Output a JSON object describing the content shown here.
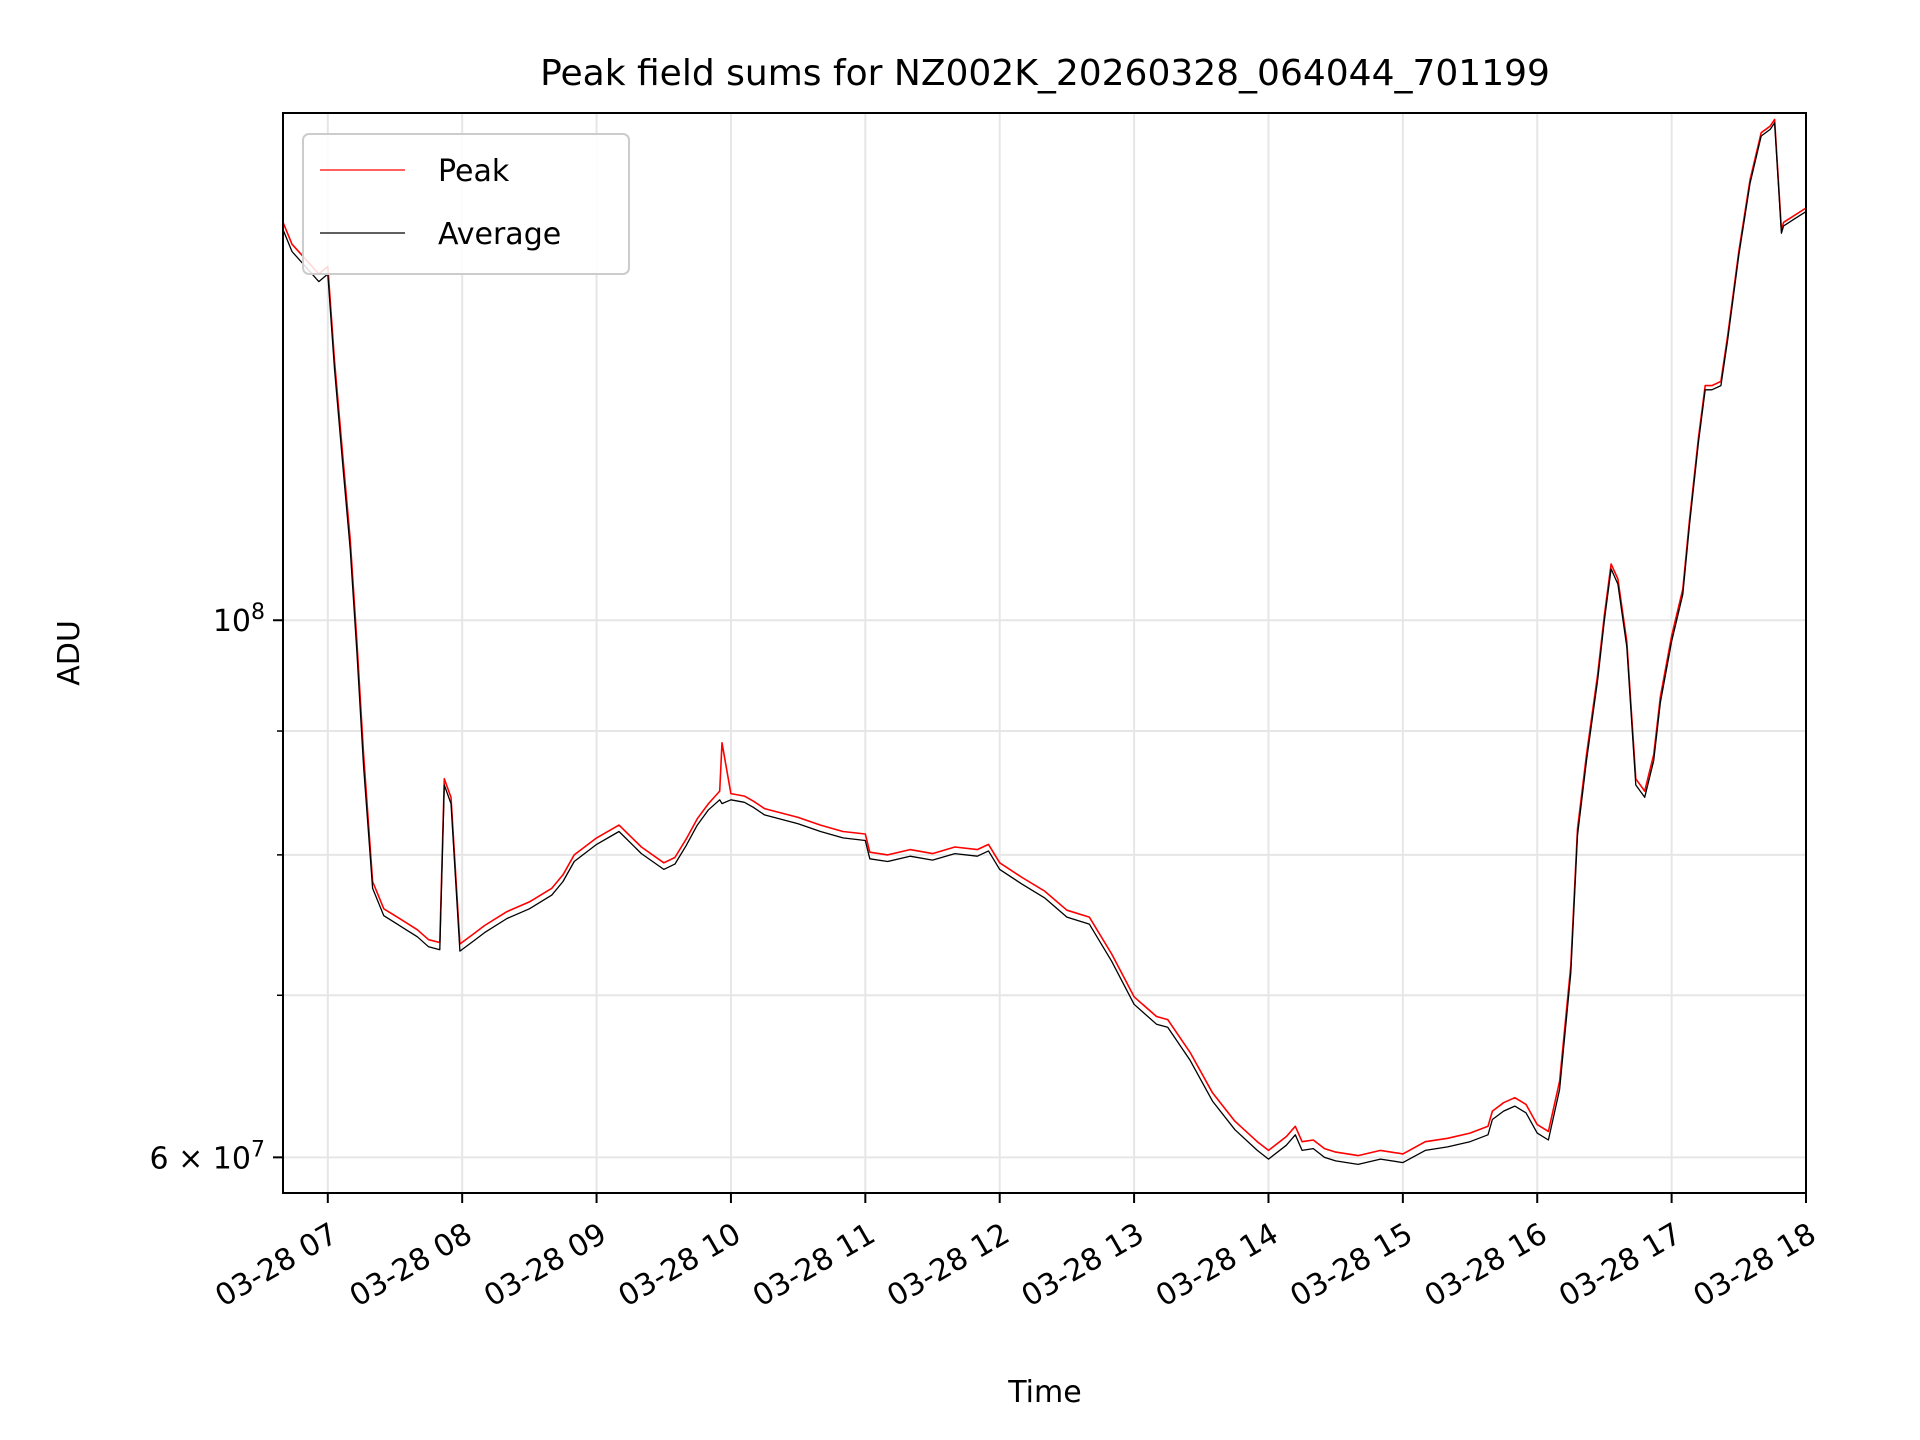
{
  "chart_data": {
    "type": "line",
    "title": "Peak field sums for NZ002K_20260328_064044_701199",
    "xlabel": "Time",
    "ylabel": "ADU",
    "y_scale": "log",
    "grid": true,
    "legend_position": "top-left",
    "xlim": [
      "2026-03-28 06:40",
      "2026-03-28 18:00"
    ],
    "ylim": [
      58000000,
      162000000
    ],
    "x_ticks": [
      "2026-03-28 07:00",
      "2026-03-28 08:00",
      "2026-03-28 09:00",
      "2026-03-28 10:00",
      "2026-03-28 11:00",
      "2026-03-28 12:00",
      "2026-03-28 13:00",
      "2026-03-28 14:00",
      "2026-03-28 15:00",
      "2026-03-28 16:00",
      "2026-03-28 17:00",
      "2026-03-28 18:00"
    ],
    "x_tick_labels": [
      "03-28 07",
      "03-28 08",
      "03-28 09",
      "03-28 10",
      "03-28 11",
      "03-28 12",
      "03-28 13",
      "03-28 14",
      "03-28 15",
      "03-28 16",
      "03-28 17",
      "03-28 18"
    ],
    "y_major_ticks": [
      {
        "value": 100000000,
        "label_base": "10",
        "label_exp": "8"
      },
      {
        "value": 60000000,
        "label_base": "6 × 10",
        "label_exp": "7"
      }
    ],
    "y_minor_ticks": [
      70000000,
      80000000,
      90000000
    ],
    "series": [
      {
        "name": "Peak",
        "color": "#ff0000",
        "x": [
          "2026-03-28 06:40",
          "2026-03-28 06:44",
          "2026-03-28 06:50",
          "2026-03-28 06:56",
          "2026-03-28 07:00",
          "2026-03-28 07:03",
          "2026-03-28 07:07",
          "2026-03-28 07:10",
          "2026-03-28 07:13",
          "2026-03-28 07:16",
          "2026-03-28 07:20",
          "2026-03-28 07:25",
          "2026-03-28 07:30",
          "2026-03-28 07:35",
          "2026-03-28 07:40",
          "2026-03-28 07:45",
          "2026-03-28 07:50",
          "2026-03-28 07:52",
          "2026-03-28 07:53",
          "2026-03-28 07:55",
          "2026-03-28 07:59",
          "2026-03-28 08:05",
          "2026-03-28 08:10",
          "2026-03-28 08:20",
          "2026-03-28 08:30",
          "2026-03-28 08:40",
          "2026-03-28 08:45",
          "2026-03-28 08:50",
          "2026-03-28 09:00",
          "2026-03-28 09:10",
          "2026-03-28 09:20",
          "2026-03-28 09:30",
          "2026-03-28 09:35",
          "2026-03-28 09:40",
          "2026-03-28 09:45",
          "2026-03-28 09:50",
          "2026-03-28 09:55",
          "2026-03-28 09:56",
          "2026-03-28 10:00",
          "2026-03-28 10:06",
          "2026-03-28 10:10",
          "2026-03-28 10:15",
          "2026-03-28 10:30",
          "2026-03-28 10:40",
          "2026-03-28 10:50",
          "2026-03-28 11:00",
          "2026-03-28 11:02",
          "2026-03-28 11:10",
          "2026-03-28 11:20",
          "2026-03-28 11:30",
          "2026-03-28 11:40",
          "2026-03-28 11:50",
          "2026-03-28 11:55",
          "2026-03-28 12:00",
          "2026-03-28 12:10",
          "2026-03-28 12:20",
          "2026-03-28 12:30",
          "2026-03-28 12:40",
          "2026-03-28 12:50",
          "2026-03-28 13:00",
          "2026-03-28 13:10",
          "2026-03-28 13:15",
          "2026-03-28 13:25",
          "2026-03-28 13:35",
          "2026-03-28 13:45",
          "2026-03-28 13:55",
          "2026-03-28 14:00",
          "2026-03-28 14:08",
          "2026-03-28 14:12",
          "2026-03-28 14:15",
          "2026-03-28 14:20",
          "2026-03-28 14:25",
          "2026-03-28 14:30",
          "2026-03-28 14:40",
          "2026-03-28 14:50",
          "2026-03-28 15:00",
          "2026-03-28 15:10",
          "2026-03-28 15:20",
          "2026-03-28 15:30",
          "2026-03-28 15:38",
          "2026-03-28 15:40",
          "2026-03-28 15:45",
          "2026-03-28 15:50",
          "2026-03-28 15:55",
          "2026-03-28 16:00",
          "2026-03-28 16:05",
          "2026-03-28 16:10",
          "2026-03-28 16:15",
          "2026-03-28 16:18",
          "2026-03-28 16:22",
          "2026-03-28 16:27",
          "2026-03-28 16:30",
          "2026-03-28 16:33",
          "2026-03-28 16:36",
          "2026-03-28 16:40",
          "2026-03-28 16:44",
          "2026-03-28 16:48",
          "2026-03-28 16:52",
          "2026-03-28 16:55",
          "2026-03-28 17:00",
          "2026-03-28 17:05",
          "2026-03-28 17:08",
          "2026-03-28 17:12",
          "2026-03-28 17:15",
          "2026-03-28 17:18",
          "2026-03-28 17:22",
          "2026-03-28 17:25",
          "2026-03-28 17:30",
          "2026-03-28 17:35",
          "2026-03-28 17:40",
          "2026-03-28 17:44",
          "2026-03-28 17:46",
          "2026-03-28 17:49",
          "2026-03-28 17:50",
          "2026-03-28 17:55",
          "2026-03-28 18:00"
        ],
        "values": [
          146000000,
          143000000,
          141000000,
          139000000,
          140000000,
          128000000,
          116000000,
          108000000,
          98000000,
          88000000,
          78000000,
          76000000,
          75500000,
          75000000,
          74500000,
          73800000,
          73600000,
          86000000,
          85500000,
          84500000,
          73500000,
          74200000,
          74800000,
          75800000,
          76500000,
          77500000,
          78500000,
          80000000,
          81300000,
          82300000,
          80600000,
          79400000,
          79800000,
          81200000,
          82800000,
          84000000,
          85000000,
          89000000,
          84800000,
          84600000,
          84200000,
          83600000,
          82900000,
          82300000,
          81800000,
          81600000,
          80200000,
          80000000,
          80400000,
          80100000,
          80600000,
          80400000,
          80800000,
          79400000,
          78300000,
          77300000,
          75900000,
          75400000,
          72800000,
          69900000,
          68600000,
          68400000,
          66300000,
          63800000,
          62100000,
          60900000,
          60400000,
          61200000,
          61800000,
          60900000,
          61000000,
          60500000,
          60300000,
          60100000,
          60400000,
          60200000,
          60900000,
          61100000,
          61400000,
          61800000,
          62700000,
          63200000,
          63500000,
          63100000,
          61900000,
          61500000,
          64500000,
          72000000,
          82000000,
          88000000,
          95000000,
          100500000,
          105500000,
          104000000,
          98000000,
          86000000,
          85000000,
          88000000,
          93000000,
          98500000,
          103000000,
          110000000,
          119000000,
          125000000,
          125000000,
          125500000,
          131000000,
          142000000,
          152000000,
          159000000,
          160000000,
          161000000,
          145000000,
          146000000,
          147000000,
          148000000
        ]
      },
      {
        "name": "Average",
        "color": "#000000",
        "x": [
          "2026-03-28 06:40",
          "2026-03-28 06:44",
          "2026-03-28 06:50",
          "2026-03-28 06:56",
          "2026-03-28 07:00",
          "2026-03-28 07:03",
          "2026-03-28 07:07",
          "2026-03-28 07:10",
          "2026-03-28 07:13",
          "2026-03-28 07:16",
          "2026-03-28 07:20",
          "2026-03-28 07:25",
          "2026-03-28 07:30",
          "2026-03-28 07:35",
          "2026-03-28 07:40",
          "2026-03-28 07:45",
          "2026-03-28 07:50",
          "2026-03-28 07:52",
          "2026-03-28 07:53",
          "2026-03-28 07:55",
          "2026-03-28 07:59",
          "2026-03-28 08:05",
          "2026-03-28 08:10",
          "2026-03-28 08:20",
          "2026-03-28 08:30",
          "2026-03-28 08:40",
          "2026-03-28 08:45",
          "2026-03-28 08:50",
          "2026-03-28 09:00",
          "2026-03-28 09:10",
          "2026-03-28 09:20",
          "2026-03-28 09:30",
          "2026-03-28 09:35",
          "2026-03-28 09:40",
          "2026-03-28 09:45",
          "2026-03-28 09:50",
          "2026-03-28 09:55",
          "2026-03-28 09:56",
          "2026-03-28 10:00",
          "2026-03-28 10:06",
          "2026-03-28 10:10",
          "2026-03-28 10:15",
          "2026-03-28 10:30",
          "2026-03-28 10:40",
          "2026-03-28 10:50",
          "2026-03-28 11:00",
          "2026-03-28 11:02",
          "2026-03-28 11:10",
          "2026-03-28 11:20",
          "2026-03-28 11:30",
          "2026-03-28 11:40",
          "2026-03-28 11:50",
          "2026-03-28 11:55",
          "2026-03-28 12:00",
          "2026-03-28 12:10",
          "2026-03-28 12:20",
          "2026-03-28 12:30",
          "2026-03-28 12:40",
          "2026-03-28 12:50",
          "2026-03-28 13:00",
          "2026-03-28 13:10",
          "2026-03-28 13:15",
          "2026-03-28 13:25",
          "2026-03-28 13:35",
          "2026-03-28 13:45",
          "2026-03-28 13:55",
          "2026-03-28 14:00",
          "2026-03-28 14:08",
          "2026-03-28 14:12",
          "2026-03-28 14:15",
          "2026-03-28 14:20",
          "2026-03-28 14:25",
          "2026-03-28 14:30",
          "2026-03-28 14:40",
          "2026-03-28 14:50",
          "2026-03-28 15:00",
          "2026-03-28 15:10",
          "2026-03-28 15:20",
          "2026-03-28 15:30",
          "2026-03-28 15:38",
          "2026-03-28 15:40",
          "2026-03-28 15:45",
          "2026-03-28 15:50",
          "2026-03-28 15:55",
          "2026-03-28 16:00",
          "2026-03-28 16:05",
          "2026-03-28 16:10",
          "2026-03-28 16:15",
          "2026-03-28 16:18",
          "2026-03-28 16:22",
          "2026-03-28 16:27",
          "2026-03-28 16:30",
          "2026-03-28 16:33",
          "2026-03-28 16:36",
          "2026-03-28 16:40",
          "2026-03-28 16:44",
          "2026-03-28 16:48",
          "2026-03-28 16:52",
          "2026-03-28 16:55",
          "2026-03-28 17:00",
          "2026-03-28 17:05",
          "2026-03-28 17:08",
          "2026-03-28 17:12",
          "2026-03-28 17:15",
          "2026-03-28 17:18",
          "2026-03-28 17:22",
          "2026-03-28 17:25",
          "2026-03-28 17:30",
          "2026-03-28 17:35",
          "2026-03-28 17:40",
          "2026-03-28 17:44",
          "2026-03-28 17:46",
          "2026-03-28 17:49",
          "2026-03-28 17:50",
          "2026-03-28 17:55",
          "2026-03-28 18:00"
        ],
        "values": [
          145000000,
          142000000,
          140000000,
          138000000,
          139000000,
          127000000,
          115000000,
          107000000,
          97000000,
          87000000,
          77500000,
          75500000,
          75000000,
          74500000,
          74000000,
          73300000,
          73100000,
          85500000,
          85000000,
          84000000,
          73000000,
          73700000,
          74300000,
          75300000,
          76000000,
          77000000,
          78000000,
          79500000,
          80800000,
          81800000,
          80100000,
          78900000,
          79300000,
          80700000,
          82300000,
          83500000,
          84300000,
          84000000,
          84300000,
          84100000,
          83700000,
          83100000,
          82400000,
          81800000,
          81300000,
          81100000,
          79700000,
          79500000,
          79900000,
          79600000,
          80100000,
          79900000,
          80300000,
          78900000,
          77800000,
          76800000,
          75400000,
          74900000,
          72300000,
          69400000,
          68100000,
          67900000,
          65800000,
          63300000,
          61600000,
          60400000,
          59900000,
          60700000,
          61300000,
          60400000,
          60500000,
          60000000,
          59800000,
          59600000,
          59900000,
          59700000,
          60400000,
          60600000,
          60900000,
          61300000,
          62200000,
          62700000,
          63000000,
          62600000,
          61400000,
          61000000,
          64000000,
          71500000,
          81500000,
          87500000,
          94500000,
          100000000,
          105000000,
          103500000,
          97500000,
          85500000,
          84500000,
          87500000,
          92500000,
          98000000,
          102500000,
          109500000,
          118500000,
          124500000,
          124500000,
          125000000,
          130500000,
          141500000,
          151500000,
          158500000,
          159500000,
          160500000,
          144500000,
          145500000,
          146500000,
          147500000
        ]
      }
    ]
  }
}
